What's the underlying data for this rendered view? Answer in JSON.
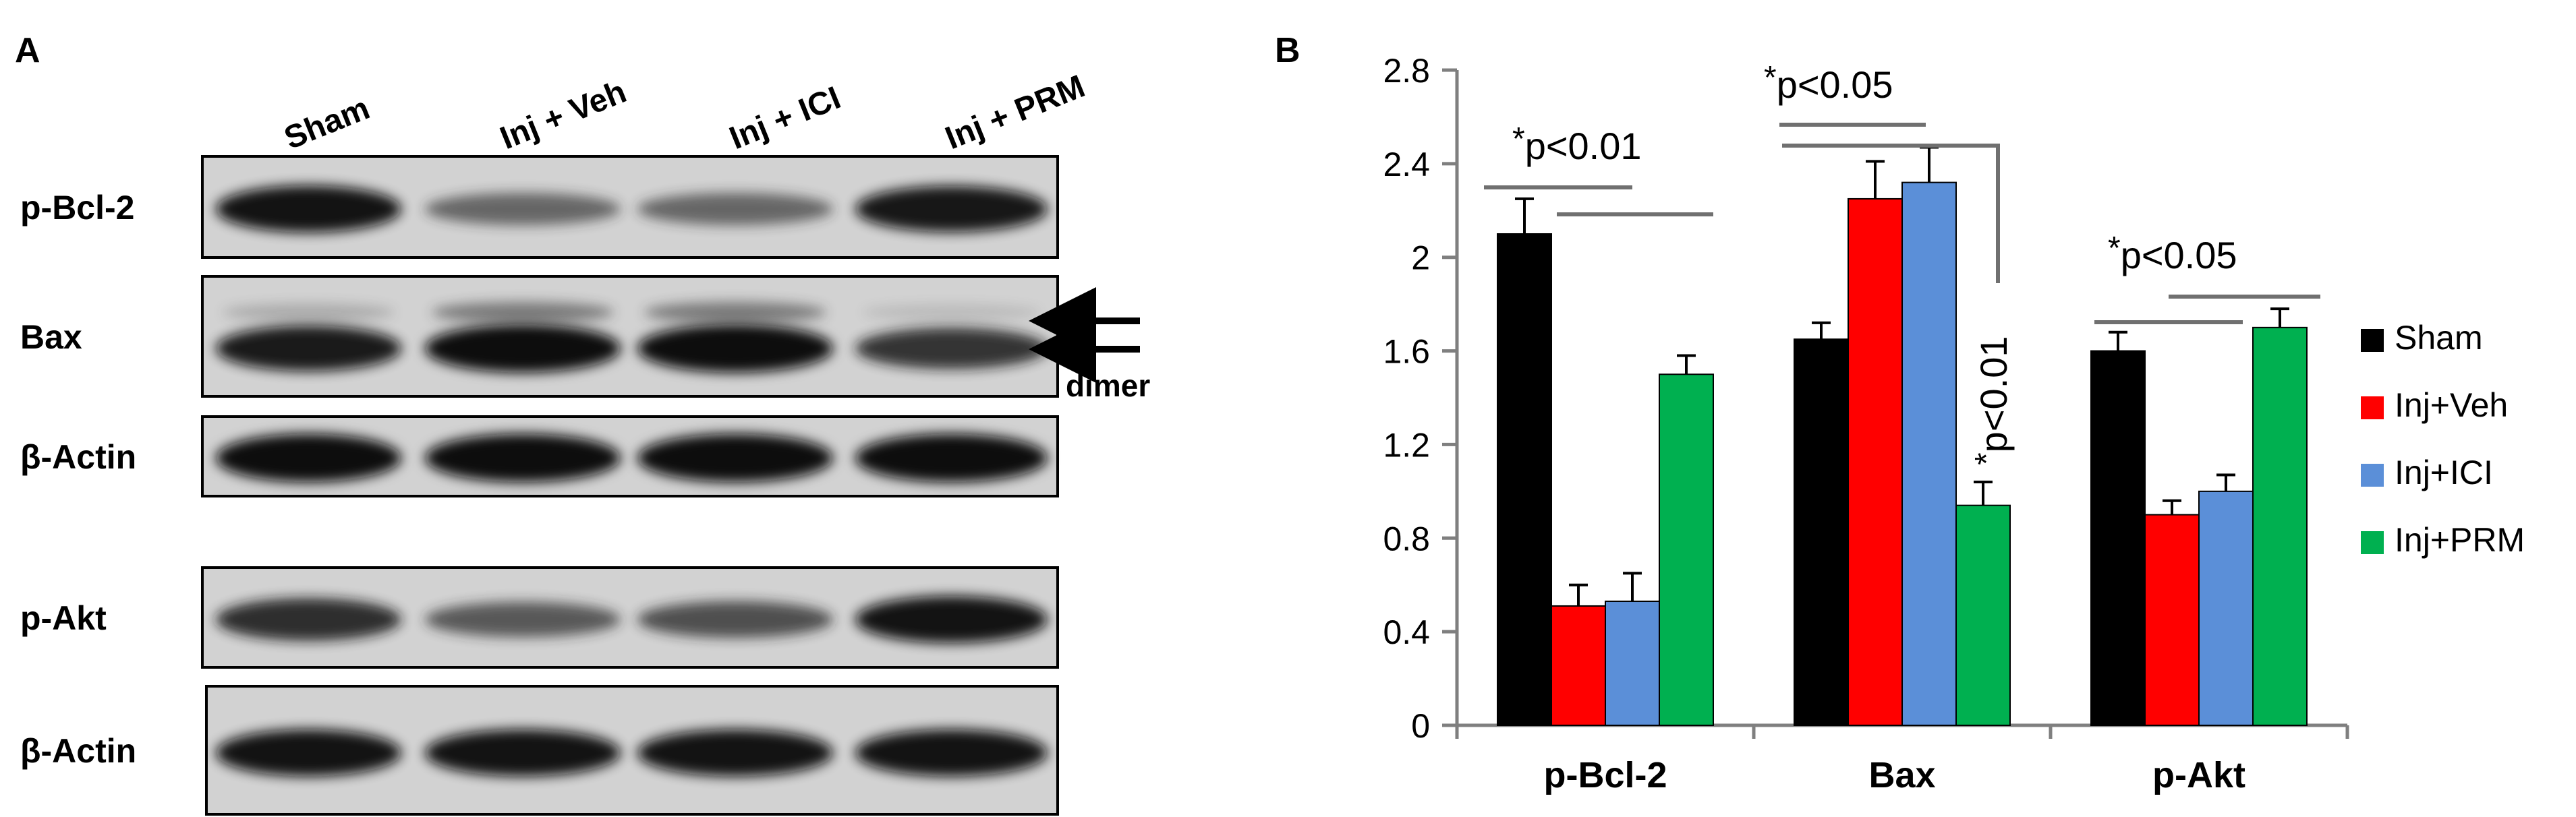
{
  "panel_a": {
    "label": "A",
    "lanes": [
      "Sham",
      "Inj + Veh",
      "Inj + ICI",
      "Inj + PRM"
    ],
    "blots": [
      {
        "label": "p-Bcl-2",
        "band_intensity": [
          0.95,
          0.45,
          0.45,
          0.92
        ]
      },
      {
        "label": "Bax",
        "band_intensity": [
          0.9,
          1.0,
          1.0,
          0.75
        ],
        "dimer_intensity": [
          0.25,
          0.55,
          0.55,
          0.15
        ]
      },
      {
        "label": "β-Actin",
        "band_intensity": [
          1.0,
          1.0,
          1.0,
          1.0
        ]
      },
      {
        "label": "p-Akt",
        "band_intensity": [
          0.8,
          0.55,
          0.6,
          0.95
        ]
      },
      {
        "label": "β-Actin",
        "band_intensity": [
          0.95,
          0.95,
          0.95,
          0.95
        ]
      }
    ],
    "dimer_label": "dimer"
  },
  "panel_b": {
    "label": "B",
    "legend": [
      "Sham",
      "Inj+Veh",
      "Inj+ICI",
      "Inj+PRM"
    ],
    "significance": [
      {
        "star": "*",
        "text": "p<0.01"
      },
      {
        "star": "*",
        "text": "p<0.05"
      },
      {
        "star": "*",
        "text": "p<0.01"
      },
      {
        "star": "*",
        "text": "p<0.05"
      }
    ]
  },
  "chart_data": {
    "type": "bar",
    "categories": [
      "p-Bcl-2",
      "Bax",
      "p-Akt"
    ],
    "series": [
      {
        "name": "Sham",
        "color": "#000000",
        "values": [
          2.1,
          1.65,
          1.6
        ],
        "errors": [
          0.15,
          0.07,
          0.08
        ]
      },
      {
        "name": "Inj+Veh",
        "color": "#ff0000",
        "values": [
          0.51,
          2.25,
          0.9
        ],
        "errors": [
          0.09,
          0.16,
          0.06
        ]
      },
      {
        "name": "Inj+ICI",
        "color": "#5b8fd8",
        "values": [
          0.53,
          2.32,
          1.0
        ],
        "errors": [
          0.12,
          0.15,
          0.07
        ]
      },
      {
        "name": "Inj+PRM",
        "color": "#00b050",
        "values": [
          1.5,
          0.94,
          1.7
        ],
        "errors": [
          0.08,
          0.1,
          0.08
        ]
      }
    ],
    "yticks": [
      "0",
      "0.4",
      "0.8",
      "1.2",
      "1.6",
      "2",
      "2.4",
      "2.8"
    ],
    "ylim": [
      0,
      2.8
    ],
    "grid": false,
    "legend_position": "right"
  }
}
